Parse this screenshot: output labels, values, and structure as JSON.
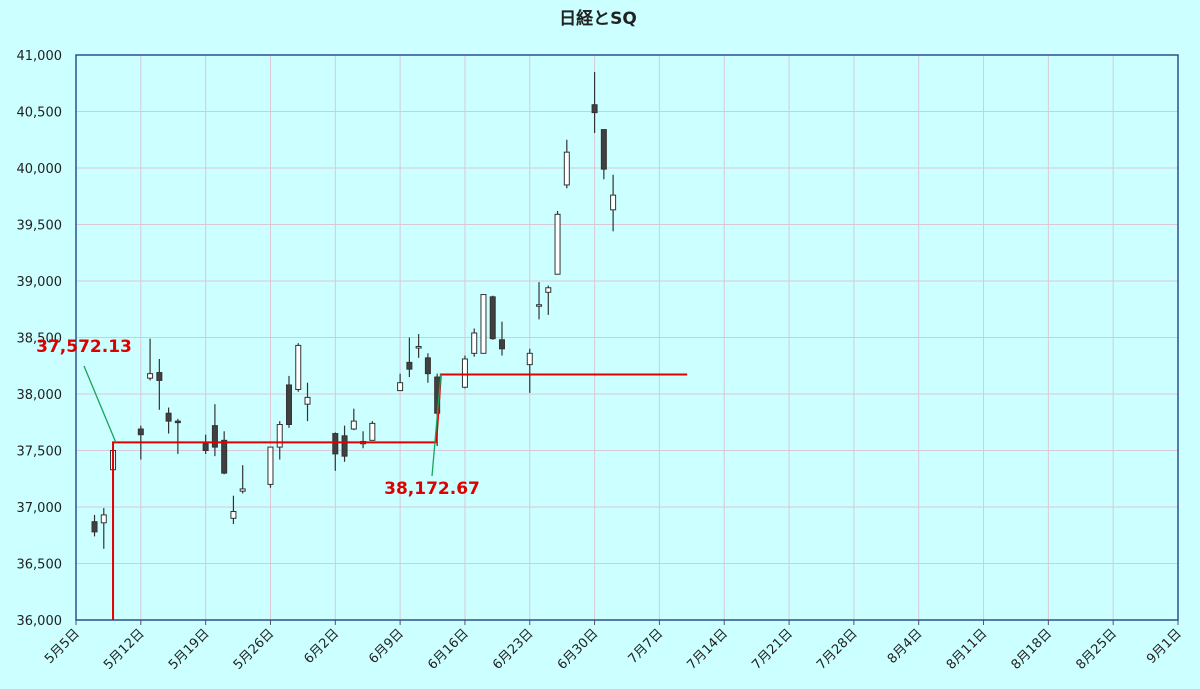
{
  "chart_data": {
    "type": "candlestick",
    "title": "日経とSQ",
    "xlim": [
      0,
      119
    ],
    "xticks": [
      {
        "value": 0,
        "label": "5月5日"
      },
      {
        "value": 7,
        "label": "5月12日"
      },
      {
        "value": 14,
        "label": "5月19日"
      },
      {
        "value": 21,
        "label": "5月26日"
      },
      {
        "value": 28,
        "label": "6月2日"
      },
      {
        "value": 35,
        "label": "6月9日"
      },
      {
        "value": 42,
        "label": "6月16日"
      },
      {
        "value": 49,
        "label": "6月23日"
      },
      {
        "value": 56,
        "label": "6月30日"
      },
      {
        "value": 63,
        "label": "7月7日"
      },
      {
        "value": 70,
        "label": "7月14日"
      },
      {
        "value": 77,
        "label": "7月21日"
      },
      {
        "value": 84,
        "label": "7月28日"
      },
      {
        "value": 91,
        "label": "8月4日"
      },
      {
        "value": 98,
        "label": "8月11日"
      },
      {
        "value": 105,
        "label": "8月18日"
      },
      {
        "value": 112,
        "label": "8月25日"
      },
      {
        "value": 119,
        "label": "9月1日"
      }
    ],
    "ylim": [
      36000,
      41000
    ],
    "yticks": [
      {
        "value": 36000,
        "label": "36,000"
      },
      {
        "value": 36500,
        "label": "36,500"
      },
      {
        "value": 37000,
        "label": "37,000"
      },
      {
        "value": 37500,
        "label": "37,500"
      },
      {
        "value": 38000,
        "label": "38,000"
      },
      {
        "value": 38500,
        "label": "38,500"
      },
      {
        "value": 39000,
        "label": "39,000"
      },
      {
        "value": 39500,
        "label": "39,500"
      },
      {
        "value": 40000,
        "label": "40,000"
      },
      {
        "value": 40500,
        "label": "40,500"
      },
      {
        "value": 41000,
        "label": "41,000"
      }
    ],
    "grid": true,
    "up_color": "#ffffff",
    "down_color": "#404040",
    "candles": {
      "x": [
        2,
        3,
        4,
        7,
        8,
        9,
        10,
        11,
        14,
        15,
        16,
        17,
        18,
        21,
        22,
        23,
        24,
        25,
        28,
        29,
        30,
        31,
        32,
        35,
        36,
        37,
        38,
        39,
        42,
        43,
        44,
        45,
        46,
        49,
        50,
        51,
        52,
        53,
        56,
        57,
        58
      ],
      "open": [
        36870,
        36860,
        37330,
        37690,
        38140,
        38190,
        37830,
        37760,
        37560,
        37720,
        37590,
        36900,
        37140,
        37200,
        37530,
        38080,
        38040,
        37910,
        37650,
        37630,
        37690,
        37560,
        37590,
        38030,
        38280,
        38420,
        38320,
        38150,
        38060,
        38360,
        38360,
        38860,
        38480,
        38260,
        38790,
        38900,
        39060,
        39850,
        40560,
        40340,
        39630
      ],
      "high": [
        36930,
        36990,
        37550,
        37720,
        38490,
        38310,
        37880,
        37780,
        37640,
        37910,
        37670,
        37100,
        37370,
        37530,
        37760,
        38160,
        38450,
        38100,
        37660,
        37720,
        37870,
        37670,
        37760,
        38180,
        38500,
        38530,
        38360,
        38180,
        38340,
        38580,
        38880,
        38870,
        38640,
        38400,
        38990,
        38960,
        39620,
        40250,
        40850,
        40340,
        39940
      ],
      "low": [
        36740,
        36630,
        37220,
        37420,
        38120,
        37860,
        37650,
        37470,
        37470,
        37450,
        37290,
        36850,
        37120,
        37170,
        37420,
        37700,
        38020,
        37760,
        37320,
        37400,
        37680,
        37520,
        37590,
        38030,
        38150,
        38320,
        38100,
        37540,
        38050,
        38330,
        38360,
        38480,
        38340,
        38010,
        38660,
        38700,
        39060,
        39820,
        40310,
        39900,
        39440
      ],
      "close": [
        36780,
        36930,
        37500,
        37640,
        38180,
        38120,
        37760,
        37750,
        37500,
        37530,
        37300,
        36960,
        37160,
        37530,
        37730,
        37730,
        38430,
        37970,
        37470,
        37450,
        37760,
        37580,
        37740,
        38100,
        38220,
        38420,
        38180,
        37830,
        38310,
        38540,
        38880,
        38490,
        38400,
        38360,
        38790,
        38940,
        39590,
        40140,
        40490,
        39990,
        39760
      ]
    },
    "sq_line": {
      "color": "#e00000",
      "x": [
        4,
        4,
        38.9,
        39.4,
        66
      ],
      "values": [
        36000,
        37572.13,
        37572.13,
        38172.67,
        38172.67
      ]
    },
    "sq_labels": {
      "color": "#dd0000",
      "leader_color": "#19a35a",
      "x": [
        4.3,
        39.4
      ],
      "values": [
        37572.13,
        38172.67
      ],
      "value_labels": [
        "37,572.13",
        "38,172.67"
      ]
    }
  }
}
